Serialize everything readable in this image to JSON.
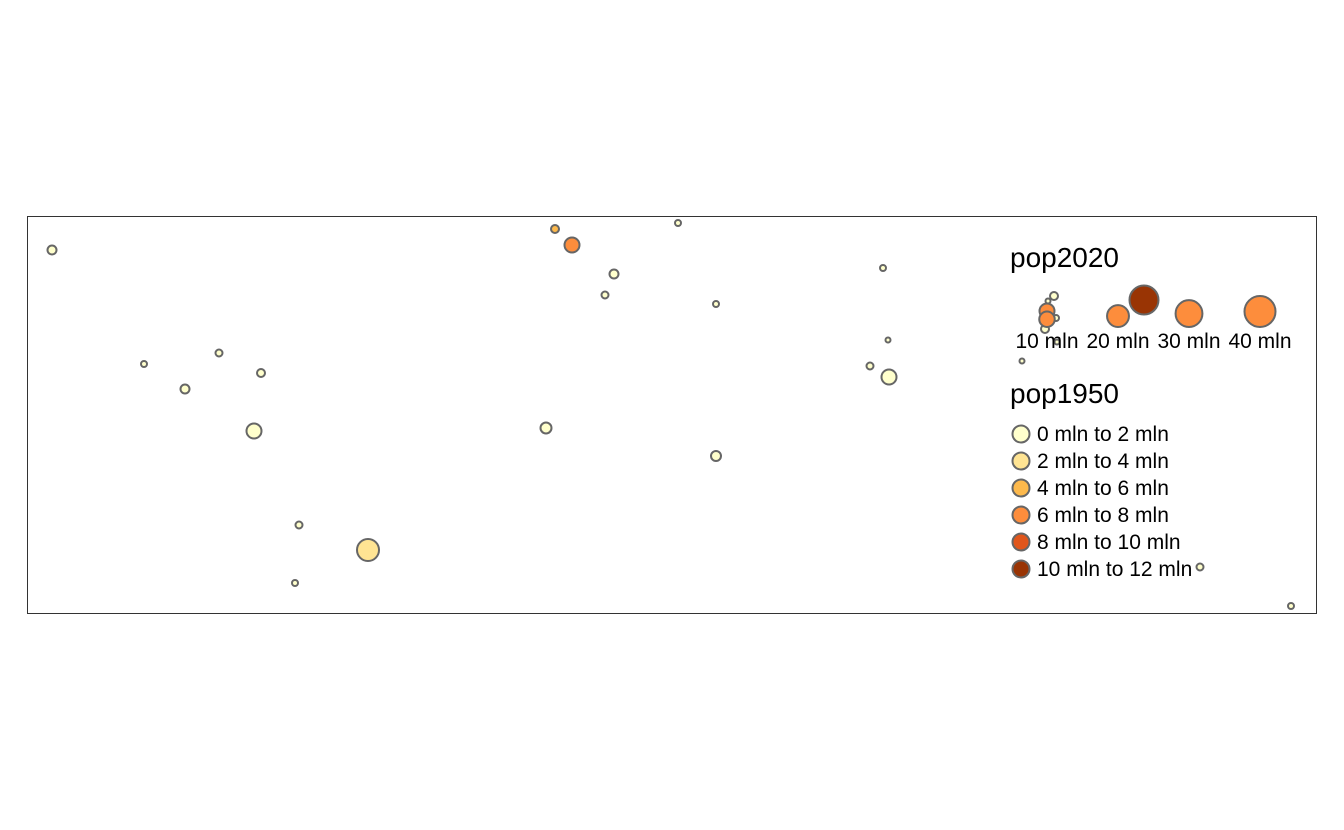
{
  "legend": {
    "size_title": "pop2020",
    "size_labels": [
      "10 mln",
      "20 mln",
      "30 mln",
      "40 mln"
    ],
    "size_values_mln": [
      10,
      20,
      30,
      40
    ],
    "size_symbol_colors": [
      "#fd8d3c",
      "#fd8d3c",
      "#fd8d3c",
      "#fd8d3c"
    ],
    "color_title": "pop1950",
    "classes": [
      {
        "label": "0 mln to 2 mln",
        "color": "#ffffcc"
      },
      {
        "label": "2 mln to 4 mln",
        "color": "#ffe493"
      },
      {
        "label": "4 mln to 6 mln",
        "color": "#fdb94c"
      },
      {
        "label": "6 mln to 8 mln",
        "color": "#fd8d3c"
      },
      {
        "label": "8 mln to 10 mln",
        "color": "#e0561b"
      },
      {
        "label": "10 mln to 12 mln",
        "color": "#993404"
      }
    ]
  },
  "colors": {
    "frame": "#333333",
    "symbol_border": "#666666",
    "background": "#ffffff"
  }
}
